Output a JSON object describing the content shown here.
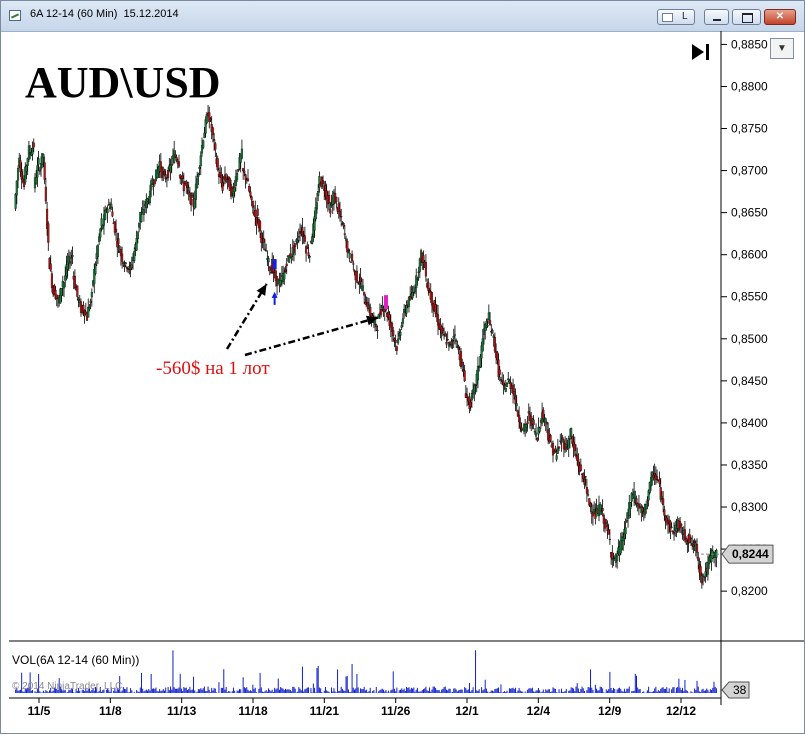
{
  "window": {
    "title": "6A 12-14 (60 Min)  15.12.2014",
    "buttons": {
      "link": "L"
    }
  },
  "chart_data": {
    "type": "candlestick",
    "title": "AUD\\USD",
    "annotation": "-560$ на 1 лот",
    "x_tick_labels": [
      "11/5",
      "11/8",
      "11/13",
      "11/18",
      "11/21",
      "11/26",
      "12/1",
      "12/4",
      "12/9",
      "12/12"
    ],
    "y_tick_labels": [
      "0,8850",
      "0,8800",
      "0,8750",
      "0,8700",
      "0,8650",
      "0,8600",
      "0,8550",
      "0,8500",
      "0,8450",
      "0,8400",
      "0,8350",
      "0,8300",
      "0,8250",
      "0,8200"
    ],
    "ylim": [
      0.8174,
      0.886
    ],
    "last_price": "0,8244",
    "last_price_value": 0.8244,
    "series": [
      {
        "points": [
          [
            0.8655,
            0.872
          ],
          [
            0.871,
            0.868
          ],
          [
            0.869,
            0.8725
          ],
          [
            0.872,
            0.873
          ],
          [
            0.868,
            0.871
          ],
          [
            0.87,
            0.872
          ],
          [
            0.871,
            0.861
          ],
          [
            0.86,
            0.8555
          ],
          [
            0.856,
            0.8545
          ],
          [
            0.854,
            0.857
          ],
          [
            0.856,
            0.859
          ],
          [
            0.859,
            0.86
          ],
          [
            0.858,
            0.855
          ],
          [
            0.855,
            0.853
          ],
          [
            0.854,
            0.8525
          ],
          [
            0.853,
            0.855
          ],
          [
            0.856,
            0.86
          ],
          [
            0.86,
            0.864
          ],
          [
            0.863,
            0.8655
          ],
          [
            0.8655,
            0.866
          ],
          [
            0.865,
            0.8625
          ],
          [
            0.862,
            0.86
          ],
          [
            0.86,
            0.8585
          ],
          [
            0.859,
            0.858
          ],
          [
            0.8585,
            0.861
          ],
          [
            0.861,
            0.865
          ],
          [
            0.864,
            0.866
          ],
          [
            0.866,
            0.867
          ],
          [
            0.868,
            0.869
          ],
          [
            0.869,
            0.871
          ],
          [
            0.8705,
            0.869
          ],
          [
            0.869,
            0.87
          ],
          [
            0.87,
            0.872
          ],
          [
            0.872,
            0.871
          ],
          [
            0.87,
            0.868
          ],
          [
            0.869,
            0.867
          ],
          [
            0.867,
            0.866
          ],
          [
            0.866,
            0.87
          ],
          [
            0.87,
            0.874
          ],
          [
            0.874,
            0.877
          ],
          [
            0.877,
            0.874
          ],
          [
            0.874,
            0.87
          ],
          [
            0.87,
            0.868
          ],
          [
            0.869,
            0.869
          ],
          [
            0.869,
            0.867
          ],
          [
            0.867,
            0.87
          ],
          [
            0.87,
            0.872
          ],
          [
            0.87,
            0.869
          ],
          [
            0.869,
            0.866
          ],
          [
            0.866,
            0.864
          ],
          [
            0.865,
            0.862
          ],
          [
            0.862,
            0.86
          ],
          [
            0.86,
            0.858
          ],
          [
            0.859,
            0.857
          ],
          [
            0.857,
            0.8565
          ],
          [
            0.857,
            0.858
          ],
          [
            0.859,
            0.86
          ],
          [
            0.86,
            0.861
          ],
          [
            0.861,
            0.863
          ],
          [
            0.863,
            0.862
          ],
          [
            0.861,
            0.86
          ],
          [
            0.861,
            0.864
          ],
          [
            0.864,
            0.869
          ],
          [
            0.869,
            0.868
          ],
          [
            0.868,
            0.866
          ],
          [
            0.865,
            0.867
          ],
          [
            0.867,
            0.865
          ],
          [
            0.865,
            0.863
          ],
          [
            0.863,
            0.86
          ],
          [
            0.86,
            0.859
          ],
          [
            0.858,
            0.857
          ],
          [
            0.857,
            0.856
          ],
          [
            0.855,
            0.854
          ],
          [
            0.854,
            0.852
          ],
          [
            0.852,
            0.8515
          ],
          [
            0.852,
            0.854
          ],
          [
            0.854,
            0.853
          ],
          [
            0.853,
            0.851
          ],
          [
            0.851,
            0.849
          ],
          [
            0.849,
            0.852
          ],
          [
            0.852,
            0.854
          ],
          [
            0.854,
            0.855
          ],
          [
            0.855,
            0.857
          ],
          [
            0.857,
            0.86
          ],
          [
            0.86,
            0.858
          ],
          [
            0.857,
            0.855
          ],
          [
            0.855,
            0.853
          ],
          [
            0.853,
            0.851
          ],
          [
            0.851,
            0.85
          ],
          [
            0.85,
            0.849
          ],
          [
            0.849,
            0.851
          ],
          [
            0.85,
            0.848
          ],
          [
            0.848,
            0.845
          ],
          [
            0.844,
            0.842
          ],
          [
            0.842,
            0.844
          ],
          [
            0.844,
            0.847
          ],
          [
            0.847,
            0.851
          ],
          [
            0.851,
            0.8525
          ],
          [
            0.852,
            0.85
          ],
          [
            0.85,
            0.846
          ],
          [
            0.846,
            0.844
          ],
          [
            0.844,
            0.845
          ],
          [
            0.845,
            0.844
          ],
          [
            0.844,
            0.841
          ],
          [
            0.841,
            0.839
          ],
          [
            0.839,
            0.84
          ],
          [
            0.841,
            0.84
          ],
          [
            0.84,
            0.838
          ],
          [
            0.839,
            0.841
          ],
          [
            0.841,
            0.84
          ],
          [
            0.839,
            0.837
          ],
          [
            0.837,
            0.836
          ],
          [
            0.8365,
            0.838
          ],
          [
            0.838,
            0.837
          ],
          [
            0.837,
            0.839
          ],
          [
            0.838,
            0.836
          ],
          [
            0.836,
            0.834
          ],
          [
            0.834,
            0.833
          ],
          [
            0.832,
            0.83
          ],
          [
            0.83,
            0.829
          ],
          [
            0.829,
            0.83
          ],
          [
            0.83,
            0.828
          ],
          [
            0.828,
            0.826
          ],
          [
            0.825,
            0.8235
          ],
          [
            0.8235,
            0.825
          ],
          [
            0.825,
            0.827
          ],
          [
            0.827,
            0.83
          ],
          [
            0.83,
            0.832
          ],
          [
            0.831,
            0.83
          ],
          [
            0.83,
            0.829
          ],
          [
            0.829,
            0.832
          ],
          [
            0.832,
            0.834
          ],
          [
            0.834,
            0.833
          ],
          [
            0.833,
            0.83
          ],
          [
            0.83,
            0.828
          ],
          [
            0.828,
            0.827
          ],
          [
            0.827,
            0.828
          ],
          [
            0.828,
            0.827
          ],
          [
            0.827,
            0.826
          ],
          [
            0.8265,
            0.8255
          ],
          [
            0.8255,
            0.825
          ],
          [
            0.824,
            0.8215
          ],
          [
            0.8215,
            0.8225
          ],
          [
            0.8225,
            0.8245
          ],
          [
            0.8244,
            0.8244
          ]
        ],
        "signals": [
          {
            "index": 53,
            "direction": "buy",
            "color": "#1020e0"
          },
          {
            "index": 76,
            "direction": "sell",
            "color": "#e020c0"
          }
        ]
      }
    ],
    "volume": {
      "label": "VOL(6A 12-14 (60 Min))",
      "last": "38",
      "ylim": [
        0,
        1700
      ]
    }
  },
  "copyright": "© 2014 NinjaTrader, LLC"
}
